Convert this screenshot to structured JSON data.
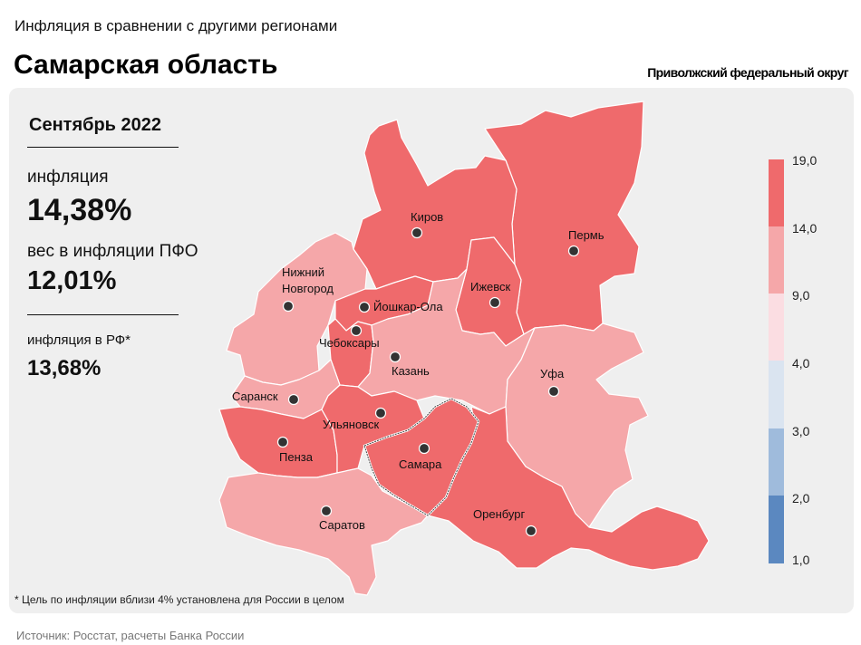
{
  "header": {
    "subtitle": "Инфляция в сравнении с другими регионами",
    "title": "Самарская область",
    "district": "Приволжский федеральный округ"
  },
  "stats": {
    "period": "Сентябрь 2022",
    "inflation_label": "инфляция",
    "inflation_value": "14,38%",
    "weight_label": "вес в инфляции ПФО",
    "weight_value": "12,01%",
    "rf_label": "инфляция в РФ*",
    "rf_value": "13,68%"
  },
  "legend": {
    "ticks": [
      "19,0",
      "14,0",
      "9,0",
      "4,0",
      "3,0",
      "2,0",
      "1,0"
    ],
    "colors": [
      "#ef6a6c",
      "#f5a7a9",
      "#fbdde2",
      "#dae4f0",
      "#9fbbdc",
      "#5b88c0"
    ]
  },
  "cities": {
    "kirov": "Киров",
    "perm": "Пермь",
    "nizhny": "Нижний Новгород",
    "yoshkar": "Йошкар-Ола",
    "izhevsk": "Ижевск",
    "cheboksary": "Чебоксары",
    "kazan": "Казань",
    "ufa": "Уфа",
    "saransk": "Саранск",
    "ulyanovsk": "Ульяновск",
    "penza": "Пенза",
    "samara": "Самара",
    "orenburg": "Оренбург",
    "saratov": "Саратов"
  },
  "footnote": "* Цель по инфляции вблизи 4% установлена для России в целом",
  "source": "Источник: Росстат, расчеты Банка России"
}
